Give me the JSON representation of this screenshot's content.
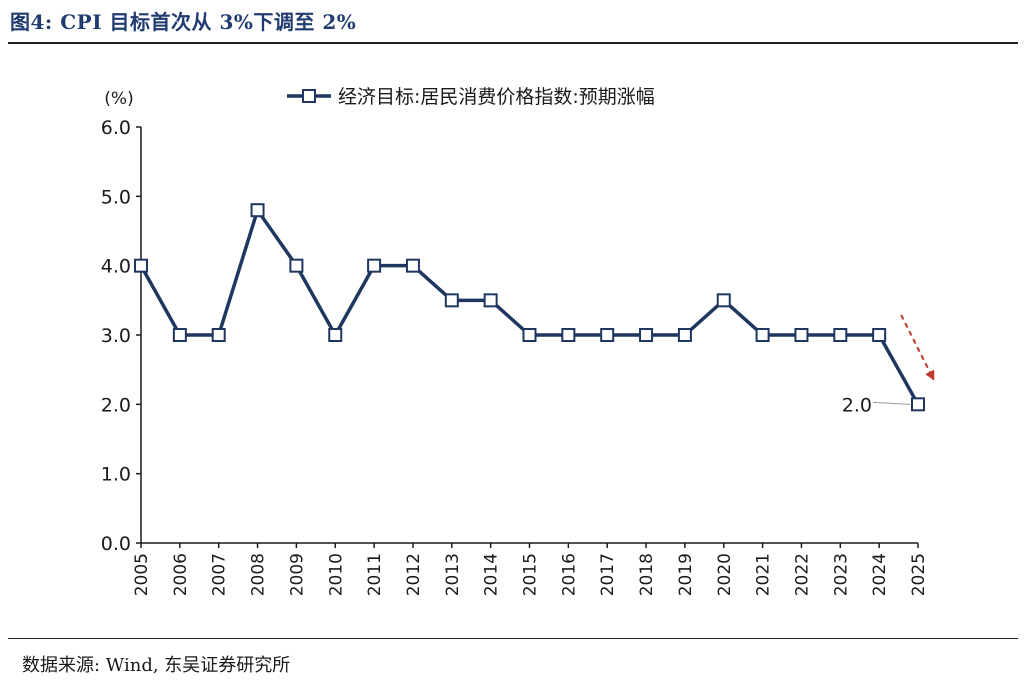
{
  "figure": {
    "title": "图4:  CPI 目标首次从 3%下调至 2%",
    "source": "数据来源:  Wind,  东吴证券研究所"
  },
  "colors": {
    "series": "#1f3760",
    "marker_fill": "#ffffff",
    "axis": "#1a1a1a",
    "trend_arrow": "#c0392b",
    "title": "#1f3b70"
  },
  "chart_data": {
    "type": "line",
    "unit_label": "(%)",
    "x": [
      "2005",
      "2006",
      "2007",
      "2008",
      "2009",
      "2010",
      "2011",
      "2012",
      "2013",
      "2014",
      "2015",
      "2016",
      "2017",
      "2018",
      "2019",
      "2020",
      "2021",
      "2022",
      "2023",
      "2024",
      "2025"
    ],
    "series": [
      {
        "name": "经济目标:居民消费价格指数:预期涨幅",
        "values": [
          4.0,
          3.0,
          3.0,
          4.8,
          4.0,
          3.0,
          4.0,
          4.0,
          3.5,
          3.5,
          3.0,
          3.0,
          3.0,
          3.0,
          3.0,
          3.5,
          3.0,
          3.0,
          3.0,
          3.0,
          2.0
        ],
        "marker": "square"
      }
    ],
    "ylim": [
      0,
      6
    ],
    "yticks": [
      0,
      1,
      2,
      3,
      4,
      5,
      6
    ],
    "ytick_labels": [
      "0.0",
      "1.0",
      "2.0",
      "3.0",
      "4.0",
      "5.0",
      "6.0"
    ],
    "legend_position": "top-center",
    "grid": false,
    "annotations": [
      {
        "text": "2.0",
        "x": "2025",
        "y": 2.0
      }
    ],
    "trend_arrow": {
      "direction": "down",
      "from": "2024",
      "to": "2025",
      "style": "dashed"
    }
  }
}
